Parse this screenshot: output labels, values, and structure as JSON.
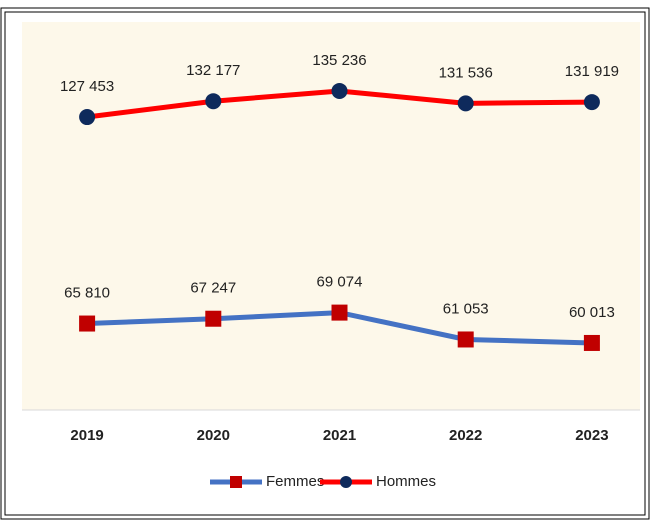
{
  "chart_data": {
    "type": "line",
    "categories": [
      "2019",
      "2020",
      "2021",
      "2022",
      "2023"
    ],
    "series": [
      {
        "name": "Femmes",
        "color": "#4472c4",
        "marker": "square",
        "marker_color": "#c00000",
        "values": [
          65810,
          67247,
          69074,
          61053,
          60013
        ],
        "value_labels": [
          "65 810",
          "67 247",
          "69 074",
          "61 053",
          "60 013"
        ]
      },
      {
        "name": "Hommes",
        "color": "#ff0000",
        "marker": "circle",
        "marker_color": "#0e2a5c",
        "values": [
          127453,
          132177,
          135236,
          131536,
          131919
        ],
        "value_labels": [
          "127 453",
          "132 177",
          "135 236",
          "131 536",
          "131 919"
        ]
      }
    ],
    "ylim": [
      40000,
      160000
    ],
    "legend": "bottom"
  }
}
